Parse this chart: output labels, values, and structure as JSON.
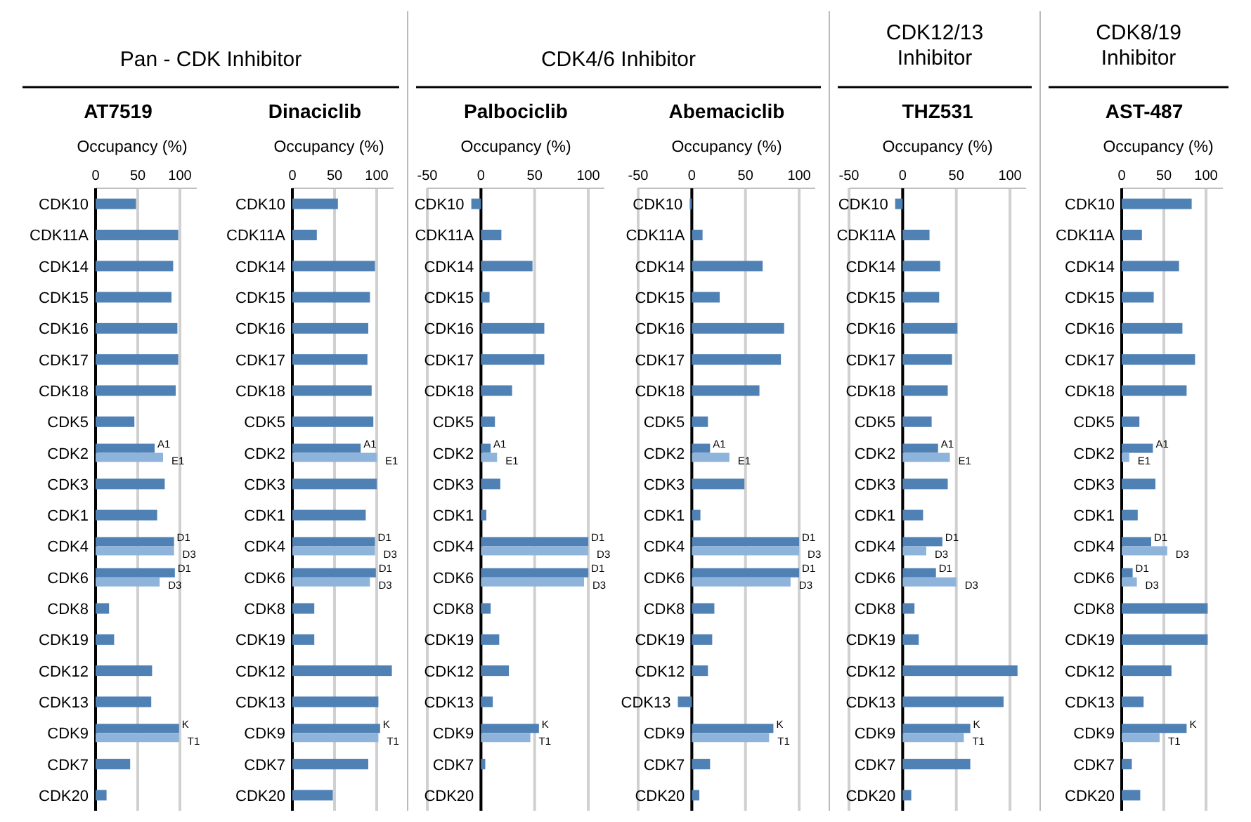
{
  "chart_data": [
    {
      "type": "bar",
      "orientation": "horizontal",
      "title": "AT7519",
      "xlabel": "Occupancy (%)",
      "annotations": [
        "Pan - CDK Inhibitor"
      ],
      "categories": [
        "CDK10",
        "CDK11A",
        "CDK14",
        "CDK15",
        "CDK16",
        "CDK17",
        "CDK18",
        "CDK5",
        "CDK2",
        "CDK3",
        "CDK1",
        "CDK4",
        "CDK6",
        "CDK8",
        "CDK19",
        "CDK12",
        "CDK13",
        "CDK9",
        "CDK7",
        "CDK20"
      ],
      "xlim": [
        0,
        120
      ],
      "xticks": [
        0,
        50,
        100
      ],
      "grid": "x",
      "series": [
        {
          "color": "#4f81b5",
          "values": [
            48,
            98,
            92,
            90,
            97,
            98,
            95,
            46,
            70,
            82,
            73,
            93,
            94,
            16,
            22,
            67,
            66,
            99,
            41,
            13
          ],
          "value_labels": [
            null,
            null,
            null,
            null,
            null,
            null,
            null,
            null,
            "A1",
            null,
            null,
            "D1",
            "D1",
            null,
            null,
            null,
            null,
            "K",
            null,
            null
          ]
        },
        {
          "color": "#8fb4dc",
          "values": [
            null,
            null,
            null,
            null,
            null,
            null,
            null,
            null,
            80,
            null,
            null,
            93,
            76,
            null,
            null,
            null,
            null,
            99,
            null,
            null
          ],
          "value_labels": [
            null,
            null,
            null,
            null,
            null,
            null,
            null,
            null,
            "E1",
            null,
            null,
            "D3",
            "D3",
            null,
            null,
            null,
            null,
            "T1",
            null,
            null
          ]
        }
      ]
    },
    {
      "type": "bar",
      "orientation": "horizontal",
      "title": "Dinaciclib",
      "xlabel": "Occupancy (%)",
      "categories": [
        "CDK10",
        "CDK11A",
        "CDK14",
        "CDK15",
        "CDK16",
        "CDK17",
        "CDK18",
        "CDK5",
        "CDK2",
        "CDK3",
        "CDK1",
        "CDK4",
        "CDK6",
        "CDK8",
        "CDK19",
        "CDK12",
        "CDK13",
        "CDK9",
        "CDK7",
        "CDK20"
      ],
      "xlim": [
        0,
        120
      ],
      "xticks": [
        0,
        50,
        100
      ],
      "grid": "x",
      "series": [
        {
          "color": "#4f81b5",
          "values": [
            54,
            29,
            98,
            92,
            90,
            89,
            94,
            96,
            81,
            100,
            87,
            98,
            99,
            26,
            26,
            118,
            102,
            104,
            90,
            48
          ],
          "value_labels": [
            null,
            null,
            null,
            null,
            null,
            null,
            null,
            null,
            "A1",
            null,
            null,
            "D1",
            "D1",
            null,
            null,
            null,
            null,
            "K",
            null,
            null
          ]
        },
        {
          "color": "#8fb4dc",
          "values": [
            null,
            null,
            null,
            null,
            null,
            null,
            null,
            null,
            100,
            null,
            null,
            98,
            92,
            null,
            null,
            null,
            null,
            102,
            null,
            null
          ],
          "value_labels": [
            null,
            null,
            null,
            null,
            null,
            null,
            null,
            null,
            "E1",
            null,
            null,
            "D3",
            "D3",
            null,
            null,
            null,
            null,
            "T1",
            null,
            null
          ]
        }
      ]
    },
    {
      "type": "bar",
      "orientation": "horizontal",
      "title": "Palbociclib",
      "xlabel": "Occupancy (%)",
      "annotations": [
        "CDK4/6 Inhibitor"
      ],
      "categories": [
        "CDK10",
        "CDK11A",
        "CDK14",
        "CDK15",
        "CDK16",
        "CDK17",
        "CDK18",
        "CDK5",
        "CDK2",
        "CDK3",
        "CDK1",
        "CDK4",
        "CDK6",
        "CDK8",
        "CDK19",
        "CDK12",
        "CDK13",
        "CDK9",
        "CDK7",
        "CDK20"
      ],
      "xlim": [
        -50,
        115
      ],
      "xticks": [
        -50,
        0,
        50,
        100
      ],
      "grid": "x",
      "series": [
        {
          "color": "#4f81b5",
          "values": [
            -9,
            19,
            48,
            8,
            59,
            59,
            29,
            13,
            9,
            18,
            5,
            100,
            100,
            9,
            17,
            26,
            11,
            54,
            4,
            0
          ],
          "value_labels": [
            null,
            null,
            null,
            null,
            null,
            null,
            null,
            null,
            "A1",
            null,
            null,
            "D1",
            "D1",
            null,
            null,
            null,
            null,
            "K",
            null,
            null
          ]
        },
        {
          "color": "#8fb4dc",
          "values": [
            null,
            null,
            null,
            null,
            null,
            null,
            null,
            null,
            15,
            null,
            null,
            100,
            96,
            null,
            null,
            null,
            null,
            46,
            null,
            null
          ],
          "value_labels": [
            null,
            null,
            null,
            null,
            null,
            null,
            null,
            null,
            "E1",
            null,
            null,
            "D3",
            "D3",
            null,
            null,
            null,
            null,
            "T1",
            null,
            null
          ]
        }
      ]
    },
    {
      "type": "bar",
      "orientation": "horizontal",
      "title": "Abemaciclib",
      "xlabel": "Occupancy (%)",
      "categories": [
        "CDK10",
        "CDK11A",
        "CDK14",
        "CDK15",
        "CDK16",
        "CDK17",
        "CDK18",
        "CDK5",
        "CDK2",
        "CDK3",
        "CDK1",
        "CDK4",
        "CDK6",
        "CDK8",
        "CDK19",
        "CDK12",
        "CDK13",
        "CDK9",
        "CDK7",
        "CDK20"
      ],
      "xlim": [
        -50,
        115
      ],
      "xticks": [
        -50,
        0,
        50,
        100
      ],
      "grid": "x",
      "series": [
        {
          "color": "#4f81b5",
          "values": [
            -2,
            10,
            66,
            26,
            86,
            83,
            63,
            15,
            17,
            49,
            8,
            100,
            100,
            21,
            19,
            15,
            -13,
            76,
            17,
            7
          ],
          "value_labels": [
            null,
            null,
            null,
            null,
            null,
            null,
            null,
            null,
            "A1",
            null,
            null,
            "D1",
            "D1",
            null,
            null,
            null,
            null,
            "K",
            null,
            null
          ]
        },
        {
          "color": "#8fb4dc",
          "values": [
            null,
            null,
            null,
            null,
            null,
            null,
            null,
            null,
            35,
            null,
            null,
            100,
            92,
            null,
            null,
            null,
            null,
            72,
            null,
            null
          ],
          "value_labels": [
            null,
            null,
            null,
            null,
            null,
            null,
            null,
            null,
            "E1",
            null,
            null,
            "D3",
            "D3",
            null,
            null,
            null,
            null,
            "T1",
            null,
            null
          ]
        }
      ]
    },
    {
      "type": "bar",
      "orientation": "horizontal",
      "title": "THZ531",
      "xlabel": "Occupancy (%)",
      "annotations": [
        "CDK12/13\nInhibitor"
      ],
      "categories": [
        "CDK10",
        "CDK11A",
        "CDK14",
        "CDK15",
        "CDK16",
        "CDK17",
        "CDK18",
        "CDK5",
        "CDK2",
        "CDK3",
        "CDK1",
        "CDK4",
        "CDK6",
        "CDK8",
        "CDK19",
        "CDK12",
        "CDK13",
        "CDK9",
        "CDK7",
        "CDK20"
      ],
      "xlim": [
        -50,
        115
      ],
      "xticks": [
        -50,
        0,
        50,
        100
      ],
      "grid": "x",
      "series": [
        {
          "color": "#4f81b5",
          "values": [
            -7,
            25,
            35,
            34,
            51,
            46,
            42,
            27,
            33,
            42,
            19,
            37,
            31,
            11,
            15,
            107,
            94,
            63,
            63,
            8
          ],
          "value_labels": [
            null,
            null,
            null,
            null,
            null,
            null,
            null,
            null,
            "A1",
            null,
            null,
            "D1",
            "D1",
            null,
            null,
            null,
            null,
            "K",
            null,
            null
          ]
        },
        {
          "color": "#8fb4dc",
          "values": [
            null,
            null,
            null,
            null,
            null,
            null,
            null,
            null,
            44,
            null,
            null,
            22,
            50,
            null,
            null,
            null,
            null,
            57,
            null,
            null
          ],
          "value_labels": [
            null,
            null,
            null,
            null,
            null,
            null,
            null,
            null,
            "E1",
            null,
            null,
            "D3",
            "D3",
            null,
            null,
            null,
            null,
            "T1",
            null,
            null
          ]
        }
      ]
    },
    {
      "type": "bar",
      "orientation": "horizontal",
      "title": "AST-487",
      "xlabel": "Occupancy (%)",
      "annotations": [
        "CDK8/19\nInhibitor"
      ],
      "categories": [
        "CDK10",
        "CDK11A",
        "CDK14",
        "CDK15",
        "CDK16",
        "CDK17",
        "CDK18",
        "CDK5",
        "CDK2",
        "CDK3",
        "CDK1",
        "CDK4",
        "CDK6",
        "CDK8",
        "CDK19",
        "CDK12",
        "CDK13",
        "CDK9",
        "CDK7",
        "CDK20"
      ],
      "xlim": [
        0,
        120
      ],
      "xticks": [
        0,
        50,
        100
      ],
      "grid": "x",
      "series": [
        {
          "color": "#4f81b5",
          "values": [
            83,
            24,
            68,
            38,
            72,
            87,
            77,
            21,
            37,
            40,
            19,
            35,
            13,
            102,
            102,
            59,
            26,
            77,
            12,
            22
          ],
          "value_labels": [
            null,
            null,
            null,
            null,
            null,
            null,
            null,
            null,
            "A1",
            null,
            null,
            "D1",
            "D1",
            null,
            null,
            null,
            null,
            "K",
            null,
            null
          ]
        },
        {
          "color": "#8fb4dc",
          "values": [
            null,
            null,
            null,
            null,
            null,
            null,
            null,
            null,
            9,
            null,
            null,
            54,
            18,
            null,
            null,
            null,
            null,
            45,
            null,
            null
          ],
          "value_labels": [
            null,
            null,
            null,
            null,
            null,
            null,
            null,
            null,
            "E1",
            null,
            null,
            "D3",
            "D3",
            null,
            null,
            null,
            null,
            "T1",
            null,
            null
          ]
        }
      ]
    }
  ]
}
